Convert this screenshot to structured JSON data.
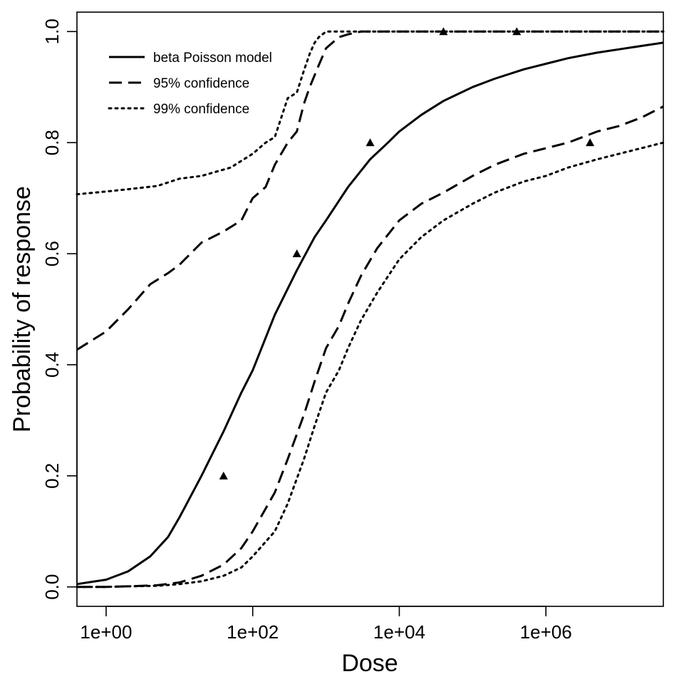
{
  "chart_data": {
    "type": "line",
    "title": "",
    "xlabel": "Dose",
    "ylabel": "Probability of response",
    "x_scale": "log10",
    "xlim": [
      0.4,
      40000000
    ],
    "ylim": [
      -0.035,
      1.035
    ],
    "x_ticks": [
      {
        "value": 1,
        "label": "1e+00"
      },
      {
        "value": 100,
        "label": "1e+02"
      },
      {
        "value": 10000,
        "label": "1e+04"
      },
      {
        "value": 1000000,
        "label": "1e+06"
      }
    ],
    "y_ticks": [
      {
        "value": 0.0,
        "label": "0.0"
      },
      {
        "value": 0.2,
        "label": "0.2"
      },
      {
        "value": 0.4,
        "label": "0.4"
      },
      {
        "value": 0.6,
        "label": "0.6"
      },
      {
        "value": 0.8,
        "label": "0.8"
      },
      {
        "value": 1.0,
        "label": "1.0"
      }
    ],
    "grid": false,
    "legend_position": "top-left",
    "series": [
      {
        "name": "beta Poisson model",
        "style": "solid",
        "x": [
          0.4,
          1,
          2,
          4,
          7,
          10,
          20,
          40,
          70,
          100,
          200,
          400,
          700,
          1000,
          2000,
          4000,
          7000,
          10000,
          20000,
          40000,
          100000,
          200000,
          500000,
          1000000,
          2000000,
          5000000,
          10000000,
          20000000,
          40000000
        ],
        "y": [
          0.005,
          0.013,
          0.028,
          0.055,
          0.09,
          0.125,
          0.2,
          0.28,
          0.35,
          0.39,
          0.49,
          0.57,
          0.63,
          0.66,
          0.72,
          0.77,
          0.8,
          0.82,
          0.85,
          0.875,
          0.9,
          0.915,
          0.932,
          0.942,
          0.952,
          0.962,
          0.968,
          0.974,
          0.98
        ]
      },
      {
        "name": "95% confidence",
        "style": "dashed",
        "x": [
          0.4,
          1,
          2,
          4,
          7,
          10,
          20,
          40,
          70,
          100,
          150,
          200,
          300,
          400,
          500,
          600,
          800,
          1000,
          1500,
          2000,
          3000,
          5000,
          10000,
          40000,
          100000,
          1000000,
          10000000,
          40000000
        ],
        "y": [
          0.427,
          0.46,
          0.5,
          0.545,
          0.565,
          0.58,
          0.62,
          0.64,
          0.66,
          0.7,
          0.72,
          0.76,
          0.8,
          0.82,
          0.87,
          0.9,
          0.94,
          0.97,
          0.99,
          0.995,
          1.0,
          1.0,
          1.0,
          1.0,
          1.0,
          1.0,
          1.0,
          1.0
        ]
      },
      {
        "name": "95% confidence",
        "style": "dashed",
        "x": [
          0.4,
          1,
          2,
          5,
          10,
          20,
          40,
          70,
          100,
          200,
          300,
          500,
          700,
          1000,
          1500,
          2000,
          3000,
          5000,
          10000,
          20000,
          40000,
          100000,
          200000,
          500000,
          1000000,
          2000000,
          5000000,
          10000000,
          20000000,
          40000000
        ],
        "y": [
          0.0,
          0.0,
          0.001,
          0.003,
          0.008,
          0.02,
          0.04,
          0.07,
          0.1,
          0.17,
          0.23,
          0.31,
          0.37,
          0.43,
          0.47,
          0.51,
          0.56,
          0.61,
          0.66,
          0.69,
          0.71,
          0.74,
          0.76,
          0.78,
          0.79,
          0.8,
          0.82,
          0.83,
          0.845,
          0.865
        ]
      },
      {
        "name": "99% confidence",
        "style": "dotted",
        "x": [
          0.4,
          1,
          2,
          5,
          10,
          20,
          50,
          100,
          150,
          200,
          300,
          400,
          500,
          600,
          700,
          800,
          1000,
          1500,
          2000,
          5000,
          10000,
          40000,
          100000,
          1000000,
          10000000,
          40000000
        ],
        "y": [
          0.707,
          0.712,
          0.716,
          0.722,
          0.735,
          0.74,
          0.755,
          0.78,
          0.8,
          0.81,
          0.88,
          0.89,
          0.93,
          0.96,
          0.98,
          0.99,
          1.0,
          1.0,
          1.0,
          1.0,
          1.0,
          1.0,
          1.0,
          1.0,
          1.0,
          1.0
        ]
      },
      {
        "name": "99% confidence",
        "style": "dotted",
        "x": [
          0.4,
          1,
          2,
          5,
          10,
          20,
          40,
          70,
          100,
          200,
          300,
          500,
          700,
          1000,
          1500,
          2000,
          3000,
          5000,
          10000,
          20000,
          40000,
          100000,
          200000,
          500000,
          1000000,
          2000000,
          5000000,
          10000000,
          20000000,
          40000000
        ],
        "y": [
          0.0,
          0.0,
          0.001,
          0.002,
          0.005,
          0.01,
          0.02,
          0.035,
          0.055,
          0.1,
          0.15,
          0.23,
          0.29,
          0.35,
          0.39,
          0.43,
          0.48,
          0.53,
          0.59,
          0.63,
          0.66,
          0.69,
          0.71,
          0.73,
          0.74,
          0.755,
          0.77,
          0.78,
          0.79,
          0.8
        ]
      }
    ],
    "points": {
      "marker": "triangle",
      "x": [
        40,
        400,
        4000,
        40000,
        400000,
        4000000
      ],
      "y": [
        0.2,
        0.6,
        0.8,
        1.0,
        1.0,
        0.8
      ]
    },
    "legend": [
      {
        "label": "beta Poisson model",
        "style": "solid"
      },
      {
        "label": "95% confidence",
        "style": "dashed"
      },
      {
        "label": "99% confidence",
        "style": "dotted"
      }
    ]
  }
}
